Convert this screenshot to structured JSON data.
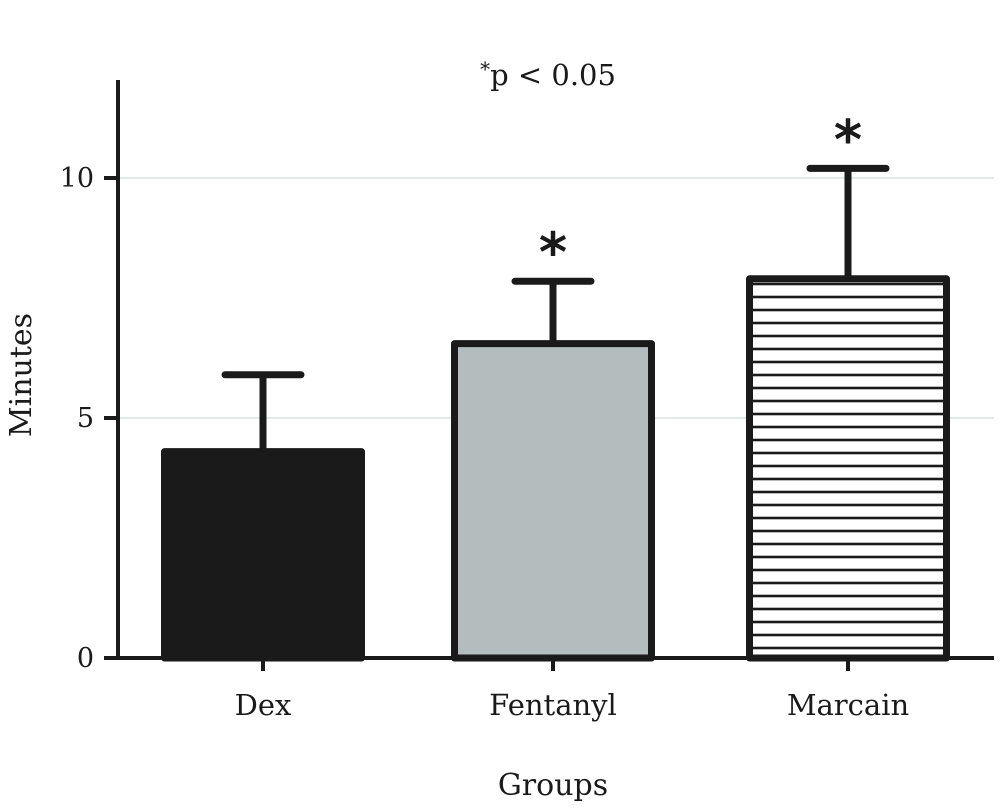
{
  "chart_data": {
    "type": "bar",
    "title": "",
    "annotation": "*p < 0.05",
    "xlabel": "Groups",
    "ylabel": "Minutes",
    "categories": [
      "Dex",
      "Fentanyl",
      "Marcain"
    ],
    "values": [
      4.3,
      6.55,
      7.9
    ],
    "error_upper": [
      5.9,
      7.85,
      10.2
    ],
    "significant": [
      false,
      true,
      true
    ],
    "significance_marker": "*",
    "fills": [
      "#1a1a1a",
      "#b4bdbd",
      "hatch"
    ],
    "ylim": [
      0,
      12
    ],
    "yticks": [
      0,
      5,
      10
    ],
    "ytick_labels": [
      "0",
      "5",
      "10"
    ],
    "grid": true
  }
}
